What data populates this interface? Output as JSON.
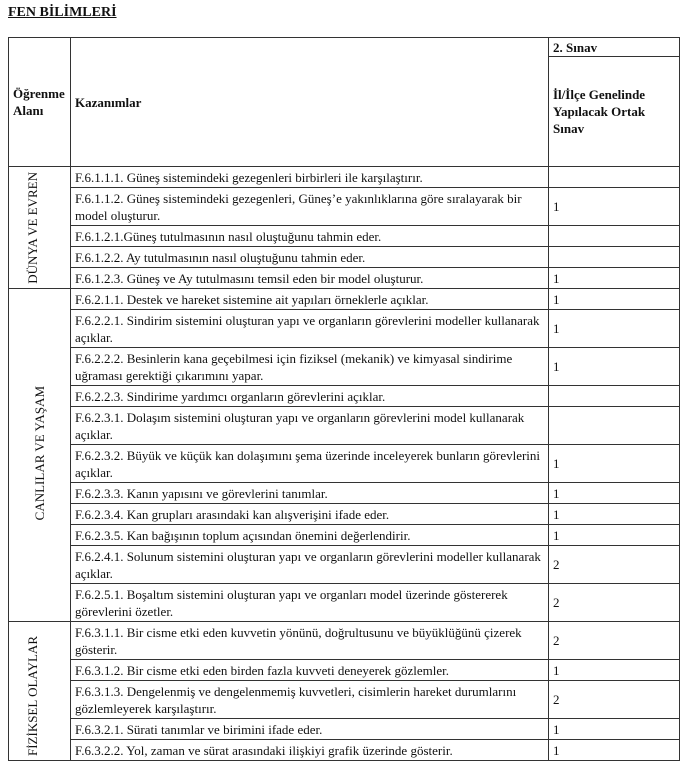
{
  "title": "FEN BİLİMLERİ",
  "header": {
    "area": "Öğrenme Alanı",
    "outcomes": "Kazanımlar",
    "exam": "2. Sınav",
    "exam_sub": "İl/İlçe Genelinde Yapılacak Ortak Sınav"
  },
  "groups": [
    {
      "area": "DÜNYA VE EVREN",
      "rows": [
        {
          "text": "F.6.1.1.1. Güneş sistemindeki gezegenleri birbirleri ile karşılaştırır.",
          "value": ""
        },
        {
          "text": "F.6.1.1.2. Güneş sistemindeki gezegenleri, Güneş’e yakınlıklarına göre sıralayarak bir model oluşturur.",
          "value": "1"
        },
        {
          "text": "F.6.1.2.1.Güneş tutulmasının nasıl oluştuğunu tahmin eder.",
          "value": ""
        },
        {
          "text": "F.6.1.2.2. Ay tutulmasının nasıl oluştuğunu tahmin eder.",
          "value": ""
        },
        {
          "text": "F.6.1.2.3. Güneş ve Ay tutulmasını temsil eden bir model oluşturur.",
          "value": "1"
        }
      ]
    },
    {
      "area": "CANLILAR VE YAŞAM",
      "rows": [
        {
          "text": "F.6.2.1.1. Destek ve hareket sistemine ait yapıları örneklerle açıklar.",
          "value": "1"
        },
        {
          "text": "F.6.2.2.1. Sindirim sistemini oluşturan yapı ve organların görevlerini modeller kullanarak açıklar.",
          "value": "1"
        },
        {
          "text": "F.6.2.2.2. Besinlerin kana geçebilmesi için fiziksel (mekanik) ve kimyasal sindirime uğraması gerektiği çıkarımını yapar.",
          "value": "1"
        },
        {
          "text": "F.6.2.2.3. Sindirime yardımcı organların görevlerini açıklar.",
          "value": ""
        },
        {
          "text": "F.6.2.3.1. Dolaşım sistemini oluşturan yapı ve organların görevlerini model kullanarak açıklar.",
          "value": ""
        },
        {
          "text": "F.6.2.3.2. Büyük ve küçük kan dolaşımını şema üzerinde inceleyerek bunların görevlerini açıklar.",
          "value": "1"
        },
        {
          "text": "F.6.2.3.3. Kanın yapısını ve görevlerini tanımlar.",
          "value": "1"
        },
        {
          "text": "F.6.2.3.4. Kan grupları arasındaki kan alışverişini ifade eder.",
          "value": "1"
        },
        {
          "text": "F.6.2.3.5. Kan bağışının toplum açısından önemini değerlendirir.",
          "value": "1"
        },
        {
          "text": "F.6.2.4.1. Solunum sistemini oluşturan yapı ve organların görevlerini modeller kullanarak açıklar.",
          "value": "2"
        },
        {
          "text": "F.6.2.5.1. Boşaltım sistemini oluşturan yapı ve organları model üzerinde göstererek görevlerini özetler.",
          "value": "2"
        }
      ]
    },
    {
      "area": "FİZİKSEL OLAYLAR",
      "rows": [
        {
          "text": "F.6.3.1.1. Bir cisme etki eden kuvvetin yönünü, doğrultusunu ve büyüklüğünü çizerek gösterir.",
          "value": "2"
        },
        {
          "text": "F.6.3.1.2. Bir cisme etki eden birden fazla kuvveti deneyerek gözlemler.",
          "value": "1"
        },
        {
          "text": "F.6.3.1.3. Dengelenmiş ve dengelenmemiş kuvvetleri, cisimlerin hareket durumlarını gözlemleyerek karşılaştırır.",
          "value": "2"
        },
        {
          "text": "F.6.3.2.1. Sürati tanımlar ve birimini ifade eder.",
          "value": "1"
        },
        {
          "text": "F.6.3.2.2. Yol, zaman ve sürat arasındaki ilişkiyi grafik üzerinde gösterir.",
          "value": "1"
        }
      ]
    }
  ]
}
